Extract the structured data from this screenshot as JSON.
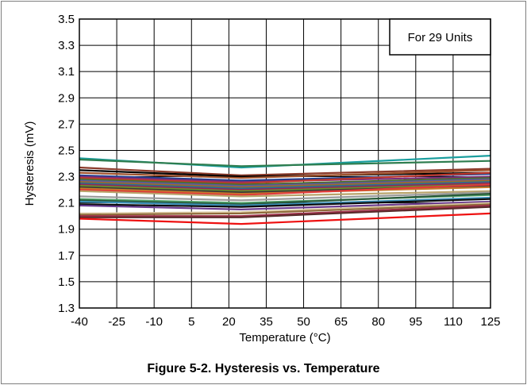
{
  "chart_data": {
    "type": "line",
    "title": "",
    "xlabel": "Temperature (°C)",
    "ylabel": "Hysteresis (mV)",
    "xlim": [
      -40,
      125
    ],
    "ylim": [
      1.3,
      3.5
    ],
    "x_ticks": [
      "-40",
      "-25",
      "-10",
      "5",
      "20",
      "35",
      "50",
      "65",
      "80",
      "95",
      "110",
      "125"
    ],
    "y_ticks": [
      "1.3",
      "1.5",
      "1.7",
      "1.9",
      "2.1",
      "2.3",
      "2.5",
      "2.7",
      "2.9",
      "3.1",
      "3.3",
      "3.5"
    ],
    "grid": true,
    "annotation": "For 29 Units",
    "x": [
      -40,
      25,
      125
    ],
    "series": [
      {
        "color": "#1a9e9e",
        "values": [
          2.44,
          2.37,
          2.46
        ]
      },
      {
        "color": "#2e7d4f",
        "values": [
          2.43,
          2.38,
          2.42
        ]
      },
      {
        "color": "#8b3a2a",
        "values": [
          2.37,
          2.31,
          2.36
        ]
      },
      {
        "color": "#000000",
        "values": [
          2.35,
          2.3,
          2.33
        ]
      },
      {
        "color": "#a0522d",
        "values": [
          2.33,
          2.29,
          2.35
        ]
      },
      {
        "color": "#1f3f8f",
        "values": [
          2.31,
          2.27,
          2.32
        ]
      },
      {
        "color": "#7a2f7a",
        "values": [
          2.3,
          2.26,
          2.3
        ]
      },
      {
        "color": "#c0392b",
        "values": [
          2.29,
          2.25,
          2.33
        ]
      },
      {
        "color": "#4b6f2a",
        "values": [
          2.28,
          2.24,
          2.29
        ]
      },
      {
        "color": "#5a5a9e",
        "values": [
          2.27,
          2.23,
          2.28
        ]
      },
      {
        "color": "#9e6b2a",
        "values": [
          2.26,
          2.22,
          2.27
        ]
      },
      {
        "color": "#2a6f8f",
        "values": [
          2.25,
          2.21,
          2.26
        ]
      },
      {
        "color": "#8f2a5a",
        "values": [
          2.24,
          2.2,
          2.25
        ]
      },
      {
        "color": "#6b8f2a",
        "values": [
          2.23,
          2.19,
          2.24
        ]
      },
      {
        "color": "#3a3a3a",
        "values": [
          2.22,
          2.18,
          2.23
        ]
      },
      {
        "color": "#c47a2a",
        "values": [
          2.21,
          2.17,
          2.22
        ]
      },
      {
        "color": "#e03a3a",
        "values": [
          2.2,
          2.16,
          2.24
        ]
      },
      {
        "color": "#b8a36a",
        "values": [
          2.19,
          2.15,
          2.19
        ]
      },
      {
        "color": "#9a9a9a",
        "values": [
          2.15,
          2.12,
          2.18
        ]
      },
      {
        "color": "#4fa36a",
        "values": [
          2.13,
          2.1,
          2.16
        ]
      },
      {
        "color": "#2a5a3a",
        "values": [
          2.12,
          2.09,
          2.17
        ]
      },
      {
        "color": "#3a8fb8",
        "values": [
          2.11,
          2.08,
          2.14
        ]
      },
      {
        "color": "#0a0a0a",
        "values": [
          2.09,
          2.07,
          2.13
        ]
      },
      {
        "color": "#6a3a8f",
        "values": [
          2.08,
          2.05,
          2.11
        ]
      },
      {
        "color": "#d9c7a0",
        "values": [
          2.02,
          2.03,
          2.1
        ]
      },
      {
        "color": "#8f6a3a",
        "values": [
          2.01,
          2.02,
          2.09
        ]
      },
      {
        "color": "#a0304a",
        "values": [
          2.0,
          2.0,
          2.08
        ]
      },
      {
        "color": "#5a2a2a",
        "values": [
          1.99,
          1.99,
          2.07
        ]
      },
      {
        "color": "#ee1111",
        "values": [
          1.98,
          1.94,
          2.02
        ]
      }
    ]
  },
  "caption": "Figure 5-2. Hysteresis vs. Temperature"
}
